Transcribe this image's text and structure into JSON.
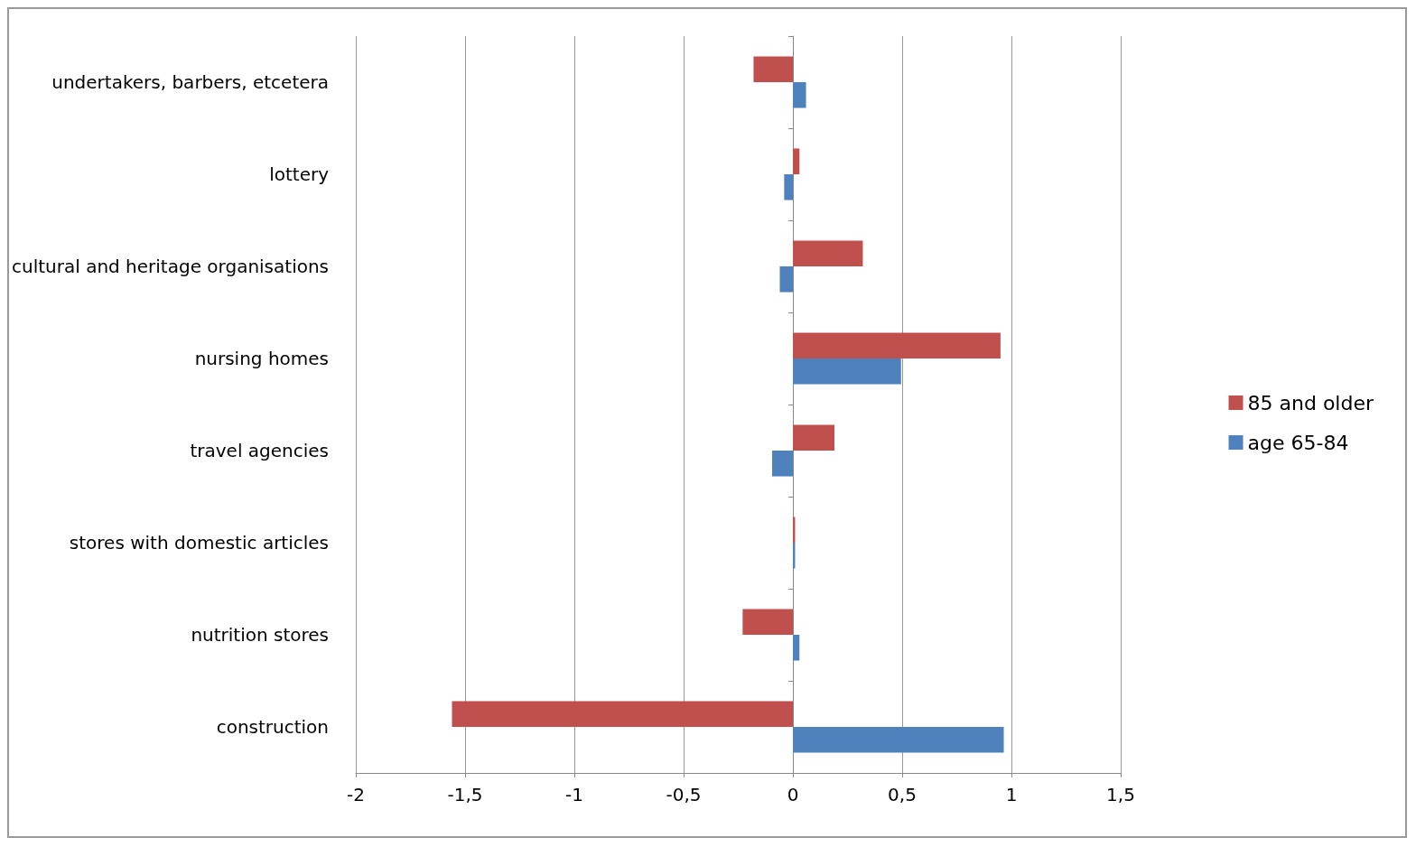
{
  "chart_data": {
    "type": "bar",
    "orientation": "horizontal",
    "categories": [
      "undertakers, barbers, etcetera",
      "lottery",
      "cultural and heritage organisations",
      "nursing homes",
      "travel agencies",
      "stores with domestic articles",
      "nutrition stores",
      "construction"
    ],
    "series": [
      {
        "name": "85 and older",
        "color": "#c0504d",
        "values": [
          -0.18,
          0.03,
          0.32,
          0.95,
          0.19,
          0.01,
          -0.23,
          -1.56
        ]
      },
      {
        "name": "age 65-84",
        "color": "#4f81bd",
        "values": [
          0.06,
          -0.04,
          -0.06,
          0.495,
          -0.095,
          0.01,
          0.03,
          0.965
        ]
      }
    ],
    "xlim": [
      -2,
      1.5
    ],
    "xticks": [
      {
        "value": -2,
        "label": "-2"
      },
      {
        "value": -1.5,
        "label": "-1,5"
      },
      {
        "value": -1,
        "label": "-1"
      },
      {
        "value": -0.5,
        "label": "-0,5"
      },
      {
        "value": 0,
        "label": "0"
      },
      {
        "value": 0.5,
        "label": "0,5"
      },
      {
        "value": 1,
        "label": "1"
      },
      {
        "value": 1.5,
        "label": "1,5"
      }
    ],
    "grid": "x",
    "legend": "right"
  }
}
